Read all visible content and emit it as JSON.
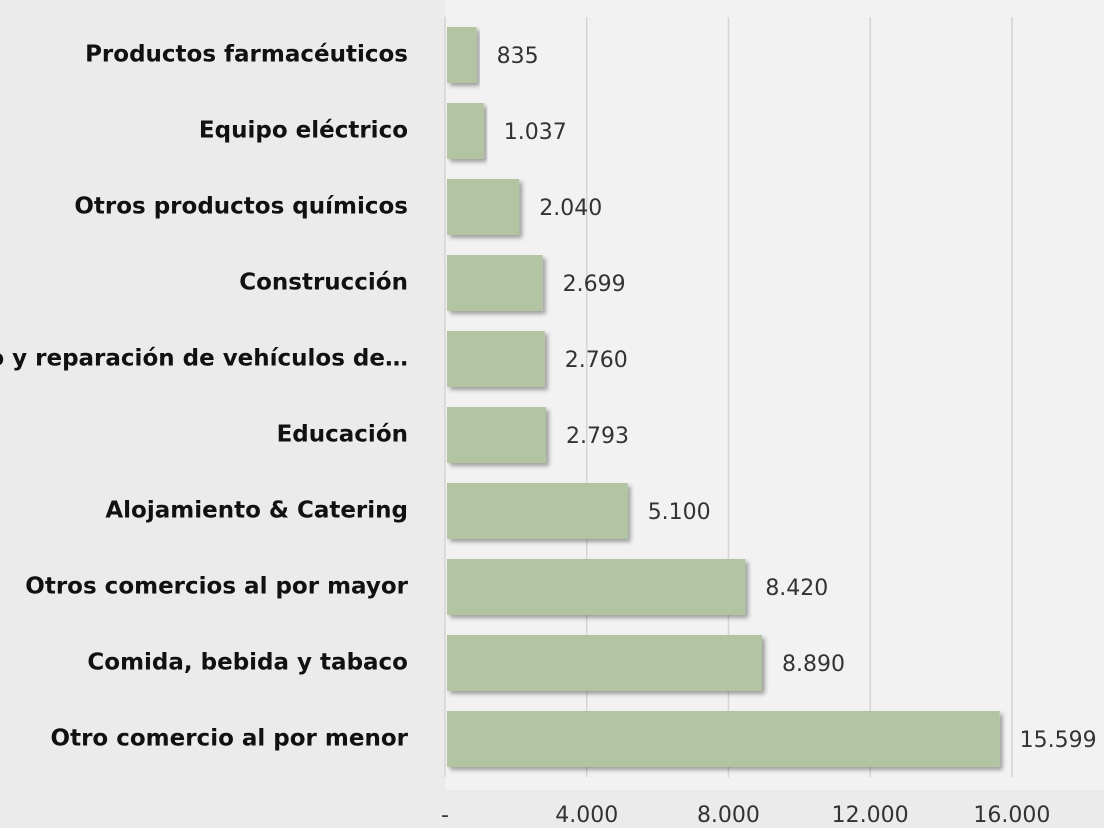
{
  "chart_data": {
    "type": "bar",
    "orientation": "horizontal",
    "categories": [
      "Productos farmacéuticos",
      "Equipo eléctrico",
      "Otros productos químicos",
      "Construcción",
      "Comercio y reparación de vehículos de…",
      "Educación",
      "Alojamiento & Catering",
      "Otros comercios al por mayor",
      "Comida, bebida y tabaco",
      "Otro comercio al por menor"
    ],
    "values": [
      835,
      1037,
      2040,
      2699,
      2760,
      2793,
      5100,
      8420,
      8890,
      15599
    ],
    "value_labels": [
      "835",
      "1.037",
      "2.040",
      "2.699",
      "2.760",
      "2.793",
      "5.100",
      "8.420",
      "8.890",
      "15.599"
    ],
    "color": "#b2c4a2",
    "xlim": [
      0,
      18600
    ],
    "xticks": [
      {
        "value": 0,
        "label": "-"
      },
      {
        "value": 4000,
        "label": "4.000"
      },
      {
        "value": 8000,
        "label": "8.000"
      },
      {
        "value": 12000,
        "label": "12.000"
      },
      {
        "value": 16000,
        "label": "16.000"
      }
    ],
    "grid": true
  }
}
